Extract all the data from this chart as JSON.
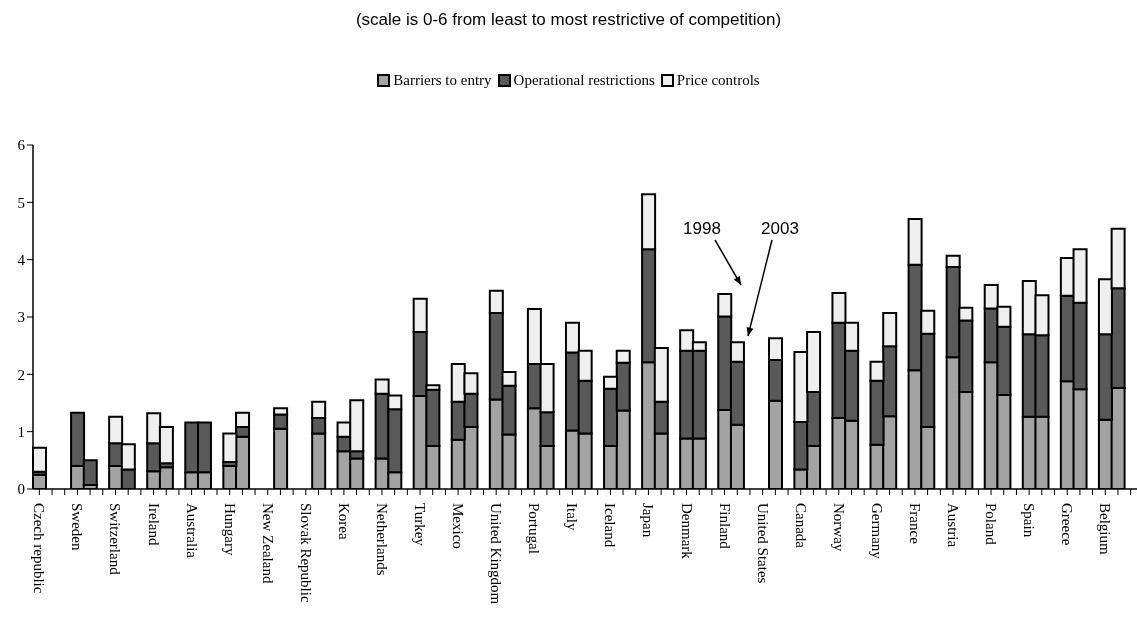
{
  "chart_data": {
    "type": "bar",
    "title": "(scale is 0-6 from least to most restrictive of competition)",
    "stacked": true,
    "legend": "top",
    "ylim": [
      0,
      6
    ],
    "yticks": [
      0,
      1,
      2,
      3,
      4,
      5,
      6
    ],
    "grid": false,
    "categories": [
      "Czech republic",
      null,
      null,
      "Sweden",
      null,
      null,
      "Switzerland",
      null,
      null,
      "Ireland",
      null,
      null,
      "Australia",
      null,
      null,
      "Hungary",
      null,
      null,
      "New Zealand",
      null,
      null,
      "Slovak Republic",
      null,
      null,
      "Korea",
      null,
      null,
      "Netherlands",
      null,
      null,
      "Turkey",
      null,
      null,
      "Mexico",
      null,
      null,
      "United Kingdom",
      null,
      null,
      "Portugal",
      null,
      null,
      "Italy",
      null,
      null,
      "Iceland",
      null,
      null,
      "Japan",
      null,
      null,
      "Denmark",
      null,
      null,
      "Finland",
      null,
      null,
      "United States",
      null,
      null,
      "Canada",
      null,
      null,
      "Norway",
      null,
      null,
      "Germany",
      null,
      null,
      "France",
      null,
      null,
      "Austria",
      null,
      null,
      "Poland",
      null,
      null,
      "Spain",
      null,
      null,
      "Greece",
      null,
      null,
      "Belgium",
      null,
      null
    ],
    "series": [
      {
        "name": "Barriers to entry",
        "color": "#a3a3a3",
        "values": [
          0.25,
          null,
          null,
          0.4,
          0.07,
          null,
          0.4,
          0,
          null,
          0.31,
          0.38,
          null,
          0.29,
          0.29,
          null,
          0.4,
          0.91,
          null,
          null,
          1.05,
          null,
          null,
          0.97,
          null,
          0.66,
          0.53,
          null,
          0.53,
          0.29,
          null,
          1.62,
          0.75,
          null,
          0.86,
          1.08,
          null,
          1.56,
          0.95,
          null,
          1.41,
          0.75,
          null,
          1.02,
          0.97,
          null,
          0.75,
          1.37,
          null,
          2.21,
          0.97,
          null,
          0.88,
          0.88,
          null,
          1.38,
          1.12,
          null,
          null,
          1.54,
          null,
          0.34,
          0.75,
          null,
          1.24,
          1.19,
          null,
          0.77,
          1.27,
          null,
          2.07,
          1.08,
          null,
          2.3,
          1.69,
          null,
          2.21,
          1.64,
          null,
          1.26,
          1.26,
          null,
          1.88,
          1.74,
          null,
          1.21,
          1.76,
          null
        ]
      },
      {
        "name": "Operational restrictions",
        "color": "#595959",
        "values": [
          0.05,
          null,
          null,
          0.93,
          0.43,
          null,
          0.4,
          0.34,
          null,
          0.49,
          0.07,
          null,
          0.87,
          0.87,
          null,
          0.07,
          0.17,
          null,
          null,
          0.25,
          null,
          null,
          0.27,
          null,
          0.25,
          0.13,
          null,
          1.13,
          1.1,
          null,
          1.12,
          0.98,
          null,
          0.66,
          0.58,
          null,
          1.51,
          0.85,
          null,
          0.77,
          0.59,
          null,
          1.36,
          0.92,
          null,
          1,
          0.83,
          null,
          1.97,
          0.55,
          null,
          1.53,
          1.53,
          null,
          1.63,
          1.1,
          null,
          null,
          0.71,
          null,
          0.83,
          0.94,
          null,
          1.66,
          1.22,
          null,
          1.12,
          1.22,
          null,
          1.84,
          1.63,
          null,
          1.57,
          1.25,
          null,
          0.94,
          1.19,
          null,
          1.44,
          1.42,
          null,
          1.49,
          1.51,
          null,
          1.49,
          1.74,
          null
        ]
      },
      {
        "name": "Price controls",
        "color": "#efefef",
        "values": [
          0.42,
          null,
          null,
          0,
          0,
          null,
          0.46,
          0.44,
          null,
          0.52,
          0.63,
          null,
          0,
          0,
          null,
          0.5,
          0.25,
          null,
          null,
          0.11,
          null,
          null,
          0.28,
          null,
          0.25,
          0.89,
          null,
          0.25,
          0.24,
          null,
          0.58,
          0.08,
          null,
          0.66,
          0.36,
          null,
          0.39,
          0.24,
          null,
          0.96,
          0.84,
          null,
          0.52,
          0.52,
          null,
          0.21,
          0.21,
          null,
          0.96,
          0.94,
          null,
          0.36,
          0.15,
          null,
          0.39,
          0.34,
          null,
          null,
          0.38,
          null,
          1.22,
          1.05,
          null,
          0.52,
          0.49,
          null,
          0.33,
          0.58,
          null,
          0.8,
          0.4,
          null,
          0.2,
          0.22,
          null,
          0.41,
          0.35,
          null,
          0.93,
          0.7,
          null,
          0.66,
          0.93,
          null,
          0.96,
          1.04,
          null
        ]
      }
    ],
    "annotations": [
      "1998",
      "2003"
    ]
  }
}
